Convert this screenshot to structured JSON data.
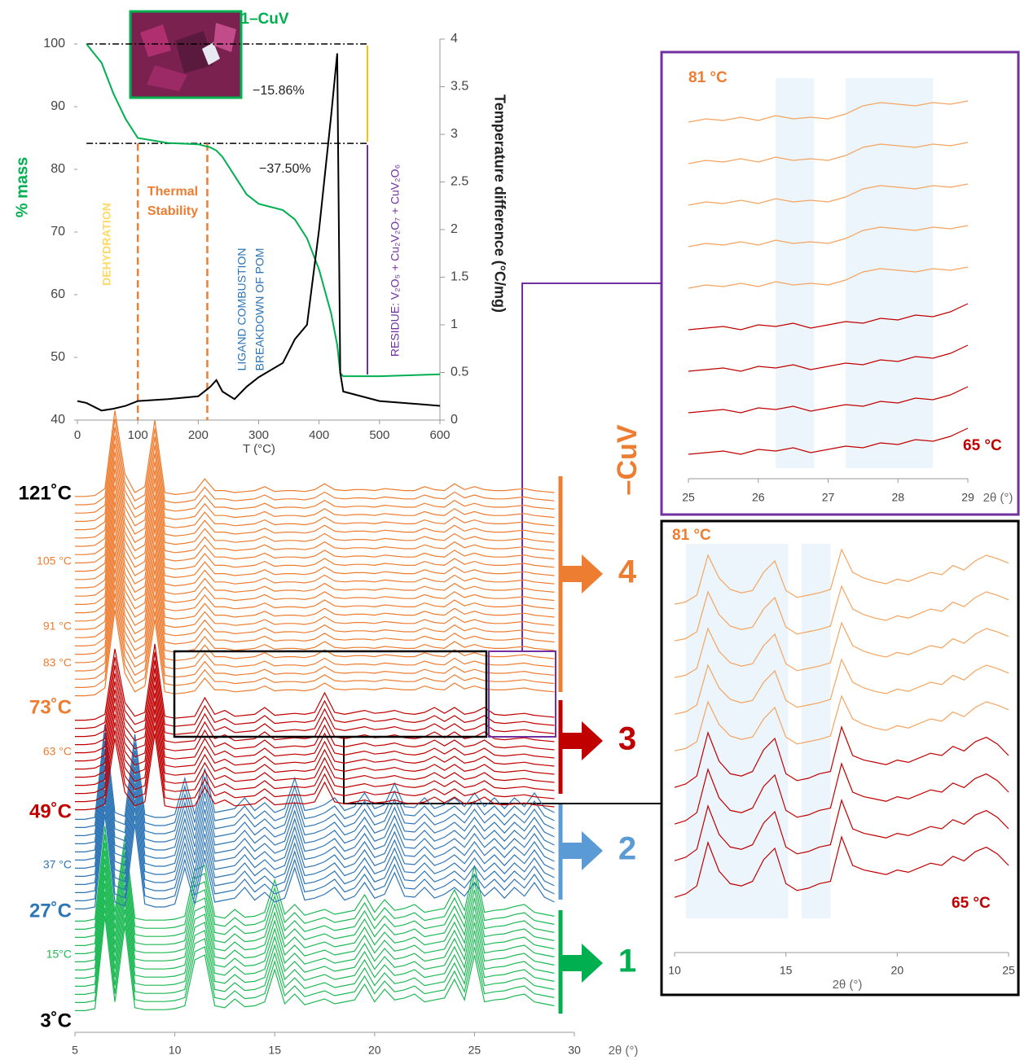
{
  "chart_data": [
    {
      "type": "tga",
      "title": "1–CuV",
      "x_label": "T (°C)",
      "y_label": "% mass",
      "y2_label": "Temperature difference (°C/mg)",
      "x": [
        0,
        15,
        40,
        60,
        80,
        100,
        150,
        200,
        220,
        230,
        240,
        260,
        280,
        300,
        340,
        360,
        380,
        400,
        420,
        430,
        435,
        440,
        500,
        600
      ],
      "series": [
        {
          "color": "#00b050",
          "values": [
            null,
            100,
            97,
            92,
            88,
            85,
            84.2,
            84,
            83.5,
            83,
            82,
            79,
            76,
            74.5,
            73.5,
            72,
            69,
            64,
            57,
            52,
            47.5,
            47,
            47,
            47.3
          ]
        },
        {
          "color": "#000000",
          "axis": "y2",
          "values": [
            0.2,
            0.18,
            0.1,
            0.12,
            0.15,
            0.2,
            0.22,
            0.25,
            0.35,
            0.42,
            0.3,
            0.22,
            0.35,
            0.45,
            0.6,
            0.85,
            1.0,
            2.0,
            3.2,
            3.85,
            0.5,
            0.3,
            0.2,
            0.15
          ]
        }
      ],
      "xlim": [
        0,
        600
      ],
      "xticks": [
        0,
        100,
        200,
        300,
        400,
        500,
        600
      ],
      "ylim": [
        40,
        100
      ],
      "yticks": [
        40,
        50,
        60,
        70,
        80,
        90,
        100
      ],
      "y2lim": [
        0,
        4
      ],
      "y2ticks": [
        0,
        0.5,
        1,
        1.5,
        2,
        2.5,
        3,
        3.5,
        4
      ],
      "hlines": [
        100,
        84.14
      ],
      "vlines": [
        100,
        215
      ],
      "annotations": {
        "loss1": "−15.86%",
        "loss2": "−37.50%",
        "dehydration": "DEHYDRATION",
        "thermal": [
          "Thermal",
          "Stability"
        ],
        "ligand": [
          "LIGAND COMBUSTION",
          "BREAKDOWN OF POM"
        ],
        "residue": "RESIDUE: V₂O₅ + Cu₂V₂O₇ + CuV₂O₆"
      }
    },
    {
      "type": "waterfall",
      "x_label": "2θ (°)",
      "name": "–CuV",
      "x": [
        5,
        5.5,
        6,
        6.5,
        7,
        7.5,
        8,
        8.5,
        9,
        9.5,
        10,
        10.5,
        11,
        11.5,
        12,
        12.5,
        13,
        13.5,
        14,
        14.5,
        15,
        15.5,
        16,
        16.5,
        17,
        17.5,
        18,
        18.5,
        19,
        19.5,
        20,
        20.5,
        21,
        21.5,
        22,
        22.5,
        23,
        23.5,
        24,
        24.5,
        25,
        25.5,
        26,
        26.5,
        27,
        27.5,
        28,
        28.5,
        29
      ],
      "series": [
        {
          "color": "#1db954",
          "values": [
            3,
            3,
            5,
            100,
            12,
            90,
            6,
            4,
            4,
            4,
            5,
            8,
            55,
            60,
            8,
            6,
            15,
            7,
            8,
            12,
            45,
            10,
            20,
            9,
            12,
            15,
            10,
            12,
            14,
            30,
            12,
            25,
            14,
            16,
            20,
            12,
            14,
            16,
            35,
            14,
            60,
            12,
            14,
            15,
            18,
            20,
            12,
            10,
            8
          ]
        },
        {
          "color": "#2e75b6",
          "values": [
            3,
            3,
            5,
            100,
            10,
            6,
            90,
            8,
            5,
            5,
            8,
            45,
            8,
            55,
            10,
            12,
            14,
            25,
            12,
            20,
            10,
            14,
            45,
            12,
            14,
            18,
            25,
            12,
            16,
            30,
            14,
            18,
            40,
            16,
            15,
            25,
            14,
            18,
            25,
            16,
            30,
            16,
            25,
            14,
            25,
            16,
            30,
            15,
            10
          ]
        },
        {
          "color": "#c00000",
          "values": [
            2,
            2,
            3,
            8,
            75,
            20,
            6,
            10,
            80,
            6,
            4,
            5,
            6,
            25,
            8,
            12,
            6,
            7,
            8,
            15,
            7,
            8,
            9,
            8,
            10,
            30,
            10,
            8,
            10,
            12,
            9,
            10,
            12,
            9,
            8,
            10,
            15,
            9,
            15,
            8,
            10,
            15,
            8,
            7,
            8,
            9,
            7,
            6,
            5
          ]
        },
        {
          "color": "#ed7d31",
          "values": [
            2,
            2,
            3,
            10,
            90,
            25,
            6,
            12,
            80,
            6,
            4,
            5,
            7,
            20,
            8,
            8,
            6,
            7,
            8,
            12,
            7,
            8,
            8,
            7,
            9,
            15,
            9,
            8,
            9,
            9,
            8,
            10,
            9,
            8,
            8,
            12,
            9,
            8,
            15,
            9,
            12,
            9,
            8,
            8,
            9,
            10,
            8,
            7,
            6
          ]
        }
      ],
      "xlim": [
        5,
        30
      ],
      "xticks": [
        5,
        10,
        15,
        20,
        25,
        30
      ],
      "temperature_labels": [
        {
          "text": "121˚C",
          "color": "#000000"
        },
        {
          "text": "105 °C",
          "color": "#ed7d31"
        },
        {
          "text": "91 °C",
          "color": "#ed7d31"
        },
        {
          "text": "83 °C",
          "color": "#ed7d31"
        },
        {
          "text": "73˚C",
          "color": "#ed7d31"
        },
        {
          "text": "63 °C",
          "color": "#ed7d31"
        },
        {
          "text": "49˚C",
          "color": "#c00000"
        },
        {
          "text": "37 °C",
          "color": "#2e75b6"
        },
        {
          "text": "27˚C",
          "color": "#2e75b6"
        },
        {
          "text": "15°C",
          "color": "#1db954"
        },
        {
          "text": "3˚C",
          "color": "#000000"
        }
      ],
      "phases": [
        {
          "label": "4",
          "color": "#ed7d31"
        },
        {
          "label": "3",
          "color": "#c00000"
        },
        {
          "label": "2",
          "color": "#5b9bd5"
        },
        {
          "label": "1",
          "color": "#00b050"
        }
      ]
    },
    {
      "type": "waterfall",
      "x_label": "2θ (°)",
      "x": [
        25,
        25.25,
        25.5,
        25.75,
        26,
        26.25,
        26.5,
        26.75,
        27,
        27.25,
        27.5,
        27.75,
        28,
        28.25,
        28.5,
        28.75,
        29
      ],
      "series": [
        {
          "color": "#f4a460",
          "values": [
            0,
            2,
            1,
            3,
            1,
            4,
            2,
            3,
            2,
            5,
            10,
            12,
            11,
            10,
            12,
            11,
            13
          ]
        },
        {
          "color": "#c00000",
          "values": [
            0,
            1,
            2,
            0,
            3,
            2,
            4,
            1,
            3,
            5,
            4,
            7,
            6,
            9,
            8,
            11,
            16
          ]
        }
      ],
      "xlim": [
        25,
        29
      ],
      "xticks": [
        25,
        26,
        27,
        28,
        29
      ],
      "bands": [
        [
          26.25,
          26.8
        ],
        [
          27.25,
          28.5
        ]
      ],
      "top_label": "81 °C",
      "bottom_label": "65 °C"
    },
    {
      "type": "waterfall",
      "x_label": "2θ (°)",
      "x": [
        10,
        10.5,
        11,
        11.5,
        12,
        12.5,
        13,
        13.5,
        14,
        14.5,
        15,
        15.5,
        16,
        16.5,
        17,
        17.5,
        18,
        18.5,
        19,
        19.5,
        20,
        20.5,
        21,
        21.5,
        22,
        22.5,
        23,
        23.5,
        24,
        24.5,
        25
      ],
      "series": [
        {
          "color": "#f4a460",
          "values": [
            2,
            4,
            10,
            45,
            25,
            15,
            12,
            14,
            30,
            40,
            14,
            8,
            10,
            12,
            15,
            50,
            30,
            25,
            22,
            20,
            24,
            22,
            26,
            30,
            28,
            36,
            32,
            40,
            45,
            42,
            38
          ]
        },
        {
          "color": "#c00000",
          "values": [
            2,
            5,
            12,
            50,
            25,
            14,
            12,
            16,
            35,
            45,
            14,
            8,
            10,
            14,
            16,
            55,
            30,
            26,
            24,
            22,
            26,
            24,
            28,
            32,
            30,
            38,
            34,
            42,
            46,
            40,
            30
          ]
        }
      ],
      "xlim": [
        10,
        25
      ],
      "xticks": [
        10,
        15,
        20,
        25
      ],
      "bands": [
        [
          10.5,
          15.1
        ],
        [
          15.7,
          17
        ]
      ],
      "top_label": "81 °C",
      "bottom_label": "65 °C"
    }
  ]
}
